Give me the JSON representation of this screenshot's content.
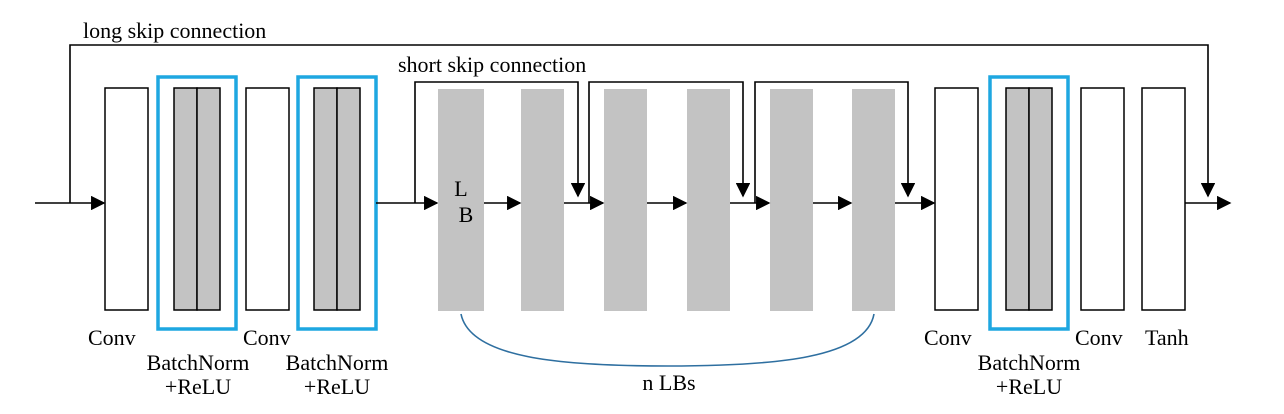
{
  "diagram": {
    "long_skip_label": "long skip connection",
    "short_skip_label": "short skip connection",
    "lb_label_line1": "L",
    "lb_label_line2": "B",
    "n_lbs_label": "n LBs",
    "labels": {
      "conv1": "Conv",
      "bn1_line1": "BatchNorm",
      "bn1_line2": "+ReLU",
      "conv2": "Conv",
      "bn2_line1": "BatchNorm",
      "bn2_line2": "+ReLU",
      "conv3": "Conv",
      "bn3_line1": "BatchNorm",
      "bn3_line2": "+ReLU",
      "conv4": "Conv",
      "tanh": "Tanh"
    },
    "colors": {
      "highlight_box": "#1ea7e1",
      "lb_fill": "#c3c3c3",
      "bn_fill": "#c3c3c3",
      "brace": "#2e6fa0",
      "line": "#000000"
    }
  }
}
